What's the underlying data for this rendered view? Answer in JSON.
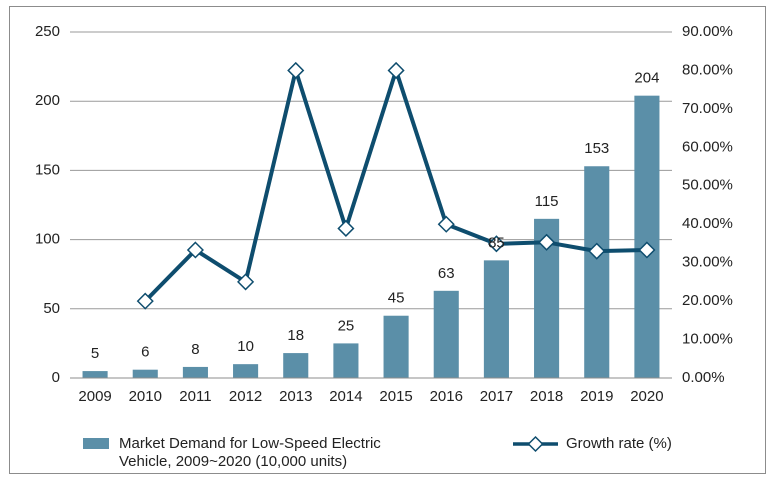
{
  "chart_data": {
    "type": "bar+line",
    "categories": [
      "2009",
      "2010",
      "2011",
      "2012",
      "2013",
      "2014",
      "2015",
      "2016",
      "2017",
      "2018",
      "2019",
      "2020"
    ],
    "series": [
      {
        "name": "Market Demand for Low-Speed Electric Vehicle, 2009~2020 (10,000 units)",
        "type": "bar",
        "axis": "left",
        "values": [
          5,
          6,
          8,
          10,
          18,
          25,
          45,
          63,
          85,
          115,
          153,
          204
        ],
        "color": "#5b8fa8"
      },
      {
        "name": "Growth rate (%)",
        "type": "line",
        "axis": "right",
        "values": [
          null,
          20.0,
          33.3,
          25.0,
          80.0,
          38.9,
          80.0,
          40.0,
          34.9,
          35.3,
          33.0,
          33.3
        ],
        "color": "#0e4d6e"
      }
    ],
    "left_axis": {
      "ylim": [
        0,
        250
      ],
      "ticks": [
        "0",
        "50",
        "100",
        "150",
        "200",
        "250"
      ]
    },
    "right_axis": {
      "ylim": [
        0,
        90
      ],
      "ticks": [
        "0.00%",
        "10.00%",
        "20.00%",
        "30.00%",
        "40.00%",
        "50.00%",
        "60.00%",
        "70.00%",
        "80.00%",
        "90.00%"
      ]
    },
    "grid": true,
    "legend_position": "bottom",
    "legend": [
      {
        "label_line1": "Market Demand for Low-Speed Electric",
        "label_line2": "Vehicle, 2009~2020 (10,000 units)"
      },
      {
        "label_line1": "Growth rate (%)"
      }
    ]
  }
}
